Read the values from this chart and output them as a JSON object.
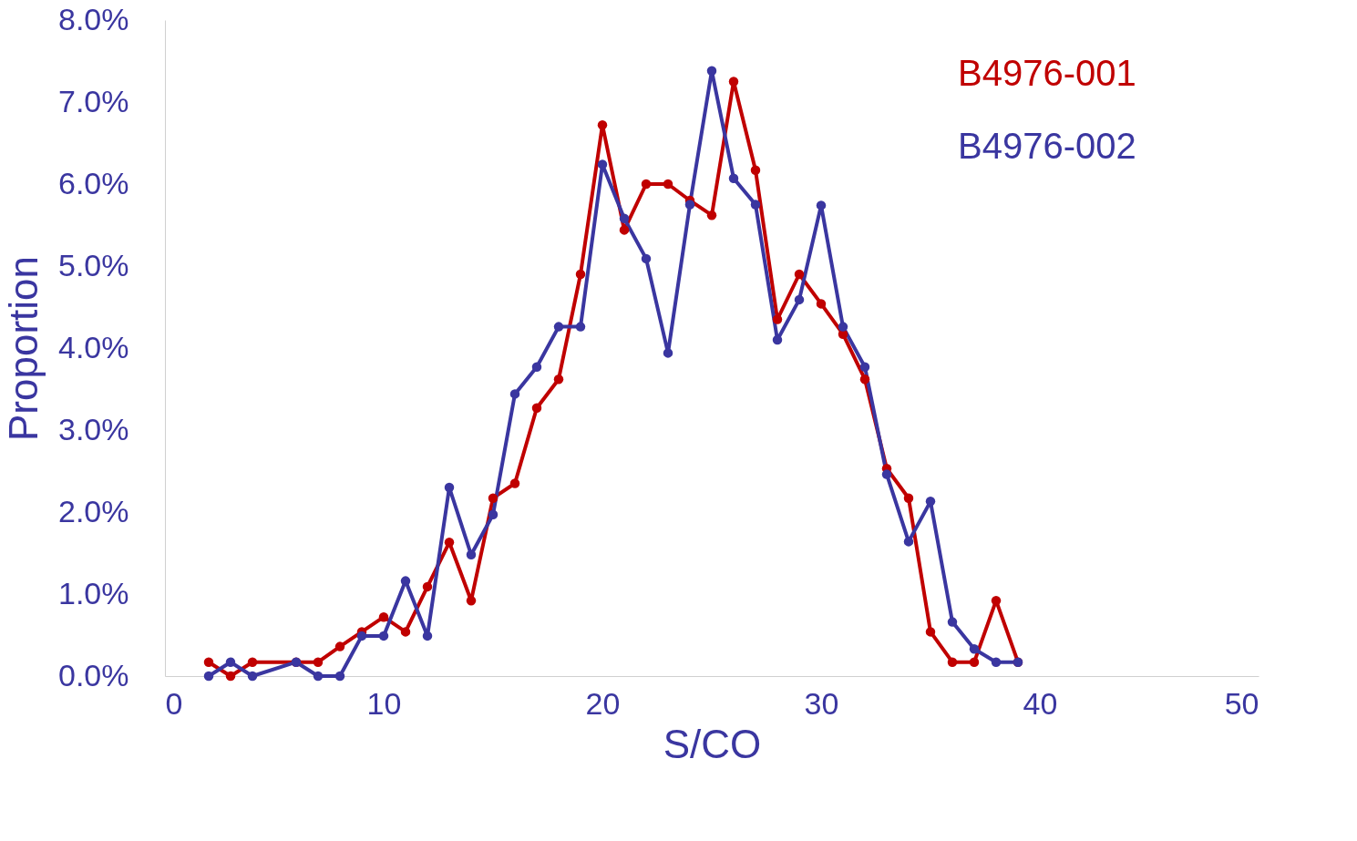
{
  "chart_data": {
    "type": "line",
    "xlabel": "S/CO",
    "ylabel": "Proportion",
    "xlim": [
      0,
      50
    ],
    "xticks": [
      0,
      10,
      20,
      30,
      40,
      50
    ],
    "ylim": [
      0,
      8
    ],
    "yticks": [
      {
        "value": 0,
        "label": "0.0%"
      },
      {
        "value": 1,
        "label": "1.0%"
      },
      {
        "value": 2,
        "label": "2.0%"
      },
      {
        "value": 3,
        "label": "3.0%"
      },
      {
        "value": 4,
        "label": "4.0%"
      },
      {
        "value": 5,
        "label": "5.0%"
      },
      {
        "value": 6,
        "label": "6.0%"
      },
      {
        "value": 7,
        "label": "7.0%"
      },
      {
        "value": 8,
        "label": "8.0%"
      }
    ],
    "grid": false,
    "legend": "top right",
    "marker": "circle",
    "line_style": "solid",
    "x": [
      2,
      3,
      4,
      6,
      7,
      8,
      9,
      10,
      11,
      12,
      13,
      14,
      15,
      16,
      17,
      18,
      19,
      20,
      21,
      22,
      23,
      24,
      25,
      26,
      27,
      28,
      29,
      30,
      31,
      32,
      33,
      34,
      35,
      36,
      37,
      38,
      39
    ],
    "series": [
      {
        "name": "B4976-001",
        "color": "#c00000",
        "values": [
          0.17,
          0,
          0.17,
          0.17,
          0.17,
          0.36,
          0.54,
          0.72,
          0.54,
          1.09,
          1.63,
          0.92,
          2.17,
          2.35,
          3.27,
          3.62,
          4.9,
          6.72,
          5.44,
          6.0,
          6.0,
          5.8,
          5.62,
          7.25,
          6.17,
          4.35,
          4.9,
          4.54,
          4.17,
          3.62,
          2.53,
          2.17,
          0.54,
          0.17,
          0.17,
          0.92,
          0.17
        ]
      },
      {
        "name": "B4976-002",
        "color": "#3a36a0",
        "values": [
          0,
          0.17,
          0,
          0.17,
          0,
          0,
          0.49,
          0.49,
          1.16,
          0.49,
          2.3,
          1.48,
          1.97,
          3.44,
          3.77,
          4.26,
          4.26,
          6.24,
          5.58,
          5.09,
          3.94,
          5.75,
          7.38,
          6.07,
          5.75,
          4.1,
          4.59,
          5.74,
          4.26,
          3.77,
          2.46,
          1.64,
          2.13,
          0.66,
          0.33,
          0.17,
          0.17
        ]
      }
    ]
  }
}
